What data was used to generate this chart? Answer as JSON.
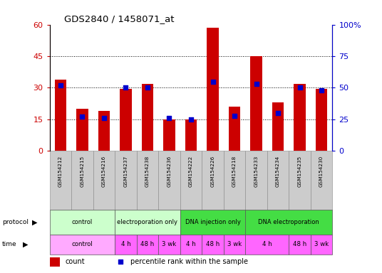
{
  "title": "GDS2840 / 1458071_at",
  "samples": [
    "GSM154212",
    "GSM154215",
    "GSM154216",
    "GSM154237",
    "GSM154238",
    "GSM154236",
    "GSM154222",
    "GSM154226",
    "GSM154218",
    "GSM154233",
    "GSM154234",
    "GSM154235",
    "GSM154230"
  ],
  "counts": [
    34,
    20,
    19,
    29.5,
    32,
    15,
    15,
    58.5,
    21,
    45,
    23,
    32,
    29.5
  ],
  "percentiles": [
    52,
    27,
    26,
    50,
    50,
    26,
    25,
    55,
    28,
    53,
    30,
    50,
    48
  ],
  "bar_color": "#cc0000",
  "dot_color": "#0000cc",
  "ylim_left": [
    0,
    60
  ],
  "ylim_right": [
    0,
    100
  ],
  "yticks_left": [
    0,
    15,
    30,
    45,
    60
  ],
  "yticks_right": [
    0,
    25,
    50,
    75,
    100
  ],
  "ytick_labels_right": [
    "0",
    "25",
    "50",
    "75",
    "100%"
  ],
  "plot_bg": "#ffffff",
  "sample_box_color": "#cccccc",
  "proto_groups": [
    {
      "label": "control",
      "start": 0,
      "end": 3,
      "color": "#ccffcc"
    },
    {
      "label": "electroporation only",
      "start": 3,
      "end": 6,
      "color": "#ccffcc"
    },
    {
      "label": "DNA injection only",
      "start": 6,
      "end": 9,
      "color": "#44dd44"
    },
    {
      "label": "DNA electroporation",
      "start": 9,
      "end": 13,
      "color": "#44dd44"
    }
  ],
  "time_groups": [
    {
      "label": "control",
      "start": 0,
      "end": 3,
      "color": "#ffaaff"
    },
    {
      "label": "4 h",
      "start": 3,
      "end": 4,
      "color": "#ff66ff"
    },
    {
      "label": "48 h",
      "start": 4,
      "end": 5,
      "color": "#ff66ff"
    },
    {
      "label": "3 wk",
      "start": 5,
      "end": 6,
      "color": "#ff66ff"
    },
    {
      "label": "4 h",
      "start": 6,
      "end": 7,
      "color": "#ff66ff"
    },
    {
      "label": "48 h",
      "start": 7,
      "end": 8,
      "color": "#ff66ff"
    },
    {
      "label": "3 wk",
      "start": 8,
      "end": 9,
      "color": "#ff66ff"
    },
    {
      "label": "4 h",
      "start": 9,
      "end": 11,
      "color": "#ff66ff"
    },
    {
      "label": "48 h",
      "start": 11,
      "end": 12,
      "color": "#ff66ff"
    },
    {
      "label": "3 wk",
      "start": 12,
      "end": 13,
      "color": "#ff66ff"
    }
  ]
}
